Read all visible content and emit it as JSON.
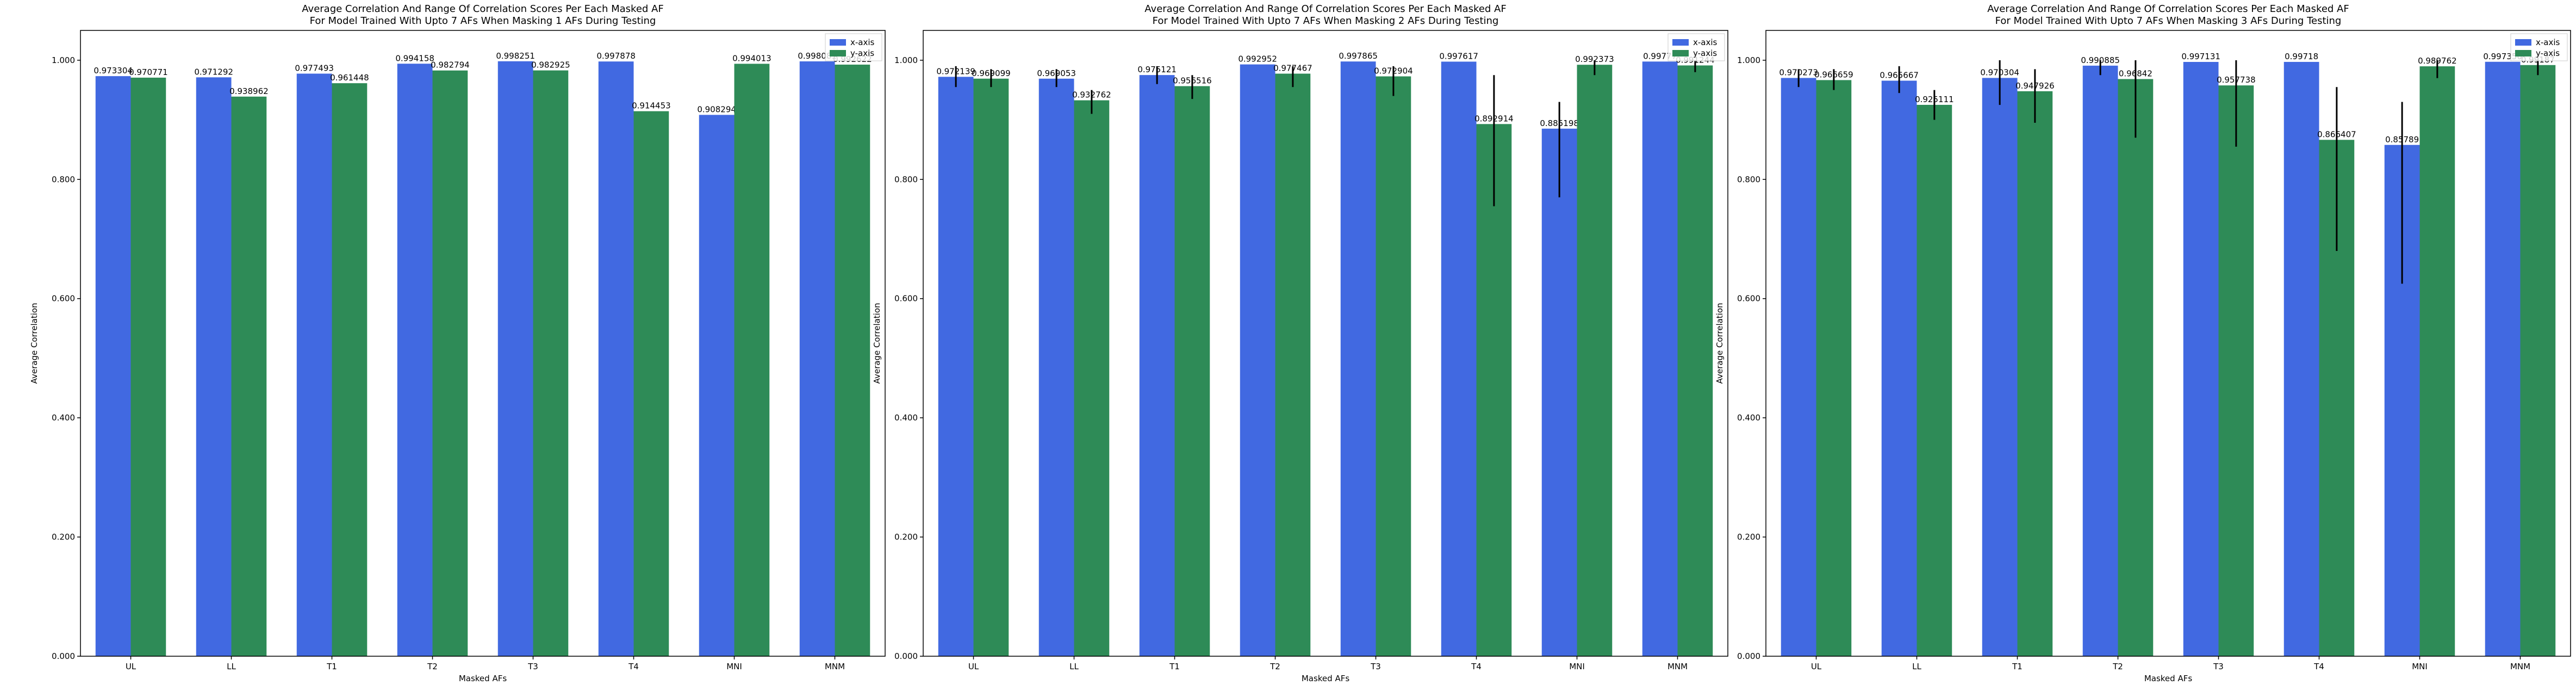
{
  "chart_data": [
    {
      "type": "bar",
      "title": "Average Correlation And Range Of Correlation Scores Per Each Masked AF",
      "subtitle": "For Model Trained With Upto 7 AFs When Masking 1 AFs During Testing",
      "xlabel": "Masked AFs",
      "ylabel": "Average Correlation",
      "ylim": [
        0,
        1.05
      ],
      "yticks": [
        "0.000",
        "0.200",
        "0.400",
        "0.600",
        "0.800",
        "1.000"
      ],
      "legend_position": "top-right",
      "categories": [
        "UL",
        "LL",
        "T1",
        "T2",
        "T3",
        "T4",
        "MNI",
        "MNM"
      ],
      "series": [
        {
          "name": "x-axis",
          "color": "#4169e1",
          "values": [
            0.973304,
            0.971292,
            0.977493,
            0.994158,
            0.998251,
            0.997878,
            0.908294,
            0.998081
          ],
          "labels": [
            "0.973304",
            "0.971292",
            "0.977493",
            "0.994158",
            "0.998251",
            "0.997878",
            "0.908294",
            "0.998081"
          ],
          "err_low": [
            null,
            null,
            null,
            null,
            null,
            null,
            null,
            null
          ],
          "err_high": [
            null,
            null,
            null,
            null,
            null,
            null,
            null,
            null
          ]
        },
        {
          "name": "y-axis",
          "color": "#2e8b57",
          "values": [
            0.970771,
            0.938962,
            0.961448,
            0.982794,
            0.982925,
            0.914453,
            0.994013,
            0.992622
          ],
          "labels": [
            "0.970771",
            "0.938962",
            "0.961448",
            "0.982794",
            "0.982925",
            "0.914453",
            "0.994013",
            "0.992622"
          ],
          "err_low": [
            null,
            null,
            null,
            null,
            null,
            null,
            null,
            null
          ],
          "err_high": [
            null,
            null,
            null,
            null,
            null,
            null,
            null,
            null
          ]
        }
      ]
    },
    {
      "type": "bar",
      "title": "Average Correlation And Range Of Correlation Scores Per Each Masked AF",
      "subtitle": "For Model Trained With Upto 7 AFs When Masking 2 AFs During Testing",
      "xlabel": "Masked AFs",
      "ylabel": "Average Correlation",
      "ylim": [
        0,
        1.05
      ],
      "yticks": [
        "0.000",
        "0.200",
        "0.400",
        "0.600",
        "0.800",
        "1.000"
      ],
      "legend_position": "top-right",
      "categories": [
        "UL",
        "LL",
        "T1",
        "T2",
        "T3",
        "T4",
        "MNI",
        "MNM"
      ],
      "series": [
        {
          "name": "x-axis",
          "color": "#4169e1",
          "values": [
            0.972139,
            0.969053,
            0.975121,
            0.992952,
            0.997865,
            0.997617,
            0.885198,
            0.99777
          ],
          "labels": [
            "0.972139",
            "0.969053",
            "0.975121",
            "0.992952",
            "0.997865",
            "0.997617",
            "0.885198",
            "0.99777"
          ],
          "err_low": [
            0.955,
            0.955,
            0.96,
            null,
            null,
            null,
            0.77,
            null
          ],
          "err_high": [
            0.99,
            0.985,
            0.99,
            null,
            null,
            null,
            0.93,
            null
          ]
        },
        {
          "name": "y-axis",
          "color": "#2e8b57",
          "values": [
            0.969099,
            0.932762,
            0.956516,
            0.977467,
            0.972904,
            0.892914,
            0.992373,
            0.991244
          ],
          "labels": [
            "0.969099",
            "0.932762",
            "0.956516",
            "0.977467",
            "0.972904",
            "0.892914",
            "0.992373",
            "0.991244"
          ],
          "err_low": [
            0.955,
            0.91,
            0.935,
            0.955,
            0.94,
            0.755,
            0.975,
            0.98
          ],
          "err_high": [
            0.985,
            0.95,
            0.975,
            0.99,
            0.99,
            0.975,
            1.0,
            1.0
          ]
        }
      ]
    },
    {
      "type": "bar",
      "title": "Average Correlation And Range Of Correlation Scores Per Each Masked AF",
      "subtitle": "For Model Trained With Upto 7 AFs When Masking 3 AFs During Testing",
      "xlabel": "Masked AFs",
      "ylabel": "Average Correlation",
      "ylim": [
        0,
        1.05
      ],
      "yticks": [
        "0.000",
        "0.200",
        "0.400",
        "0.600",
        "0.800",
        "1.000"
      ],
      "legend_position": "top-right",
      "categories": [
        "UL",
        "LL",
        "T1",
        "T2",
        "T3",
        "T4",
        "MNI",
        "MNM"
      ],
      "series": [
        {
          "name": "x-axis",
          "color": "#4169e1",
          "values": [
            0.970273,
            0.965667,
            0.970304,
            0.990885,
            0.997131,
            0.99718,
            0.85789,
            0.997356
          ],
          "labels": [
            "0.970273",
            "0.965667",
            "0.970304",
            "0.990885",
            "0.997131",
            "0.99718",
            "0.85789",
            "0.997356"
          ],
          "err_low": [
            0.955,
            0.945,
            0.925,
            0.975,
            null,
            null,
            0.625,
            null
          ],
          "err_high": [
            0.985,
            0.99,
            1.0,
            1.0,
            null,
            null,
            0.93,
            null
          ]
        },
        {
          "name": "y-axis",
          "color": "#2e8b57",
          "values": [
            0.966659,
            0.925111,
            0.947926,
            0.96842,
            0.957738,
            0.866407,
            0.989762,
            0.99187
          ],
          "labels": [
            "0.966659",
            "0.925111",
            "0.947926",
            "0.96842",
            "0.957738",
            "0.866407",
            "0.989762",
            "0.99187"
          ],
          "err_low": [
            0.95,
            0.9,
            0.895,
            0.87,
            0.855,
            0.68,
            0.97,
            0.975
          ],
          "err_high": [
            0.985,
            0.95,
            0.985,
            1.0,
            1.0,
            0.955,
            1.0,
            1.0
          ]
        }
      ]
    }
  ]
}
